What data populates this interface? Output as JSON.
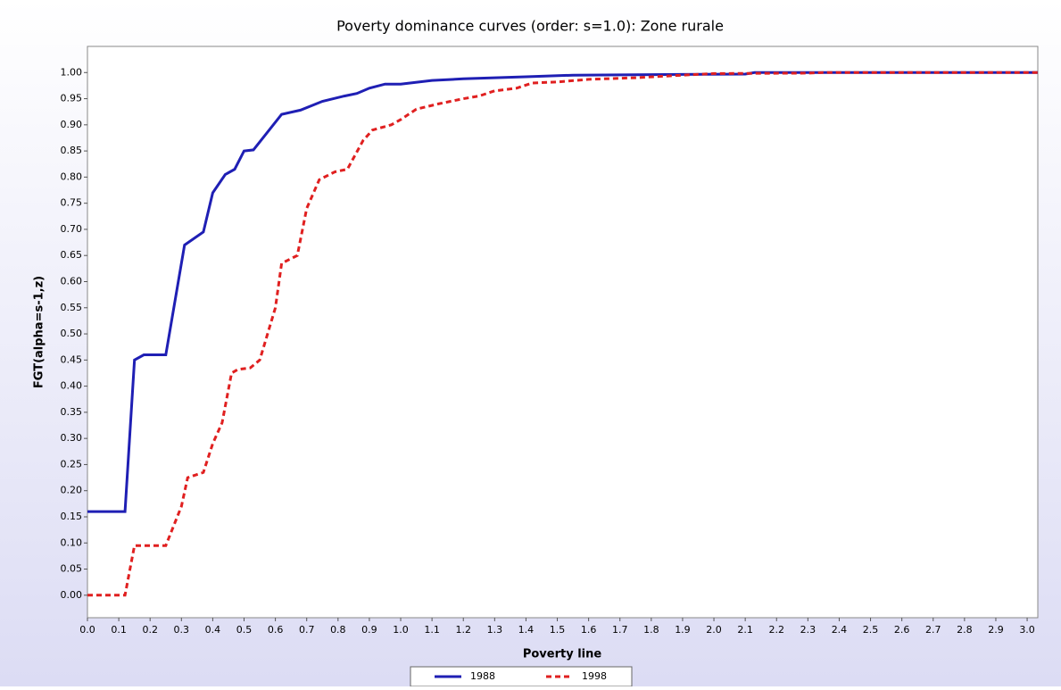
{
  "chart_data": {
    "type": "line",
    "title": "Poverty dominance curves (order: s=1.0): Zone rurale",
    "xlabel": "Poverty line",
    "ylabel": "FGT(alpha=s-1,z)",
    "xlim": [
      0,
      3.034
    ],
    "ylim": [
      -0.043,
      1.05
    ],
    "grid": false,
    "legend": "bottom",
    "xticks": [
      {
        "value": 0,
        "label": "0.0"
      },
      {
        "value": 0.1,
        "label": "0.1"
      },
      {
        "value": 0.2,
        "label": "0.2"
      },
      {
        "value": 0.3,
        "label": "0.3"
      },
      {
        "value": 0.4,
        "label": "0.4"
      },
      {
        "value": 0.5,
        "label": "0.5"
      },
      {
        "value": 0.6,
        "label": "0.6"
      },
      {
        "value": 0.7,
        "label": "0.7"
      },
      {
        "value": 0.8,
        "label": "0.8"
      },
      {
        "value": 0.9,
        "label": "0.9"
      },
      {
        "value": 1,
        "label": "1.0"
      },
      {
        "value": 1.1,
        "label": "1.1"
      },
      {
        "value": 1.2,
        "label": "1.2"
      },
      {
        "value": 1.3,
        "label": "1.3"
      },
      {
        "value": 1.4,
        "label": "1.4"
      },
      {
        "value": 1.5,
        "label": "1.5"
      },
      {
        "value": 1.6,
        "label": "1.6"
      },
      {
        "value": 1.7,
        "label": "1.7"
      },
      {
        "value": 1.8,
        "label": "1.8"
      },
      {
        "value": 1.9,
        "label": "1.9"
      },
      {
        "value": 2,
        "label": "2.0"
      },
      {
        "value": 2.1,
        "label": "2.1"
      },
      {
        "value": 2.2,
        "label": "2.2"
      },
      {
        "value": 2.3,
        "label": "2.3"
      },
      {
        "value": 2.4,
        "label": "2.4"
      },
      {
        "value": 2.5,
        "label": "2.5"
      },
      {
        "value": 2.6,
        "label": "2.6"
      },
      {
        "value": 2.7,
        "label": "2.7"
      },
      {
        "value": 2.8,
        "label": "2.8"
      },
      {
        "value": 2.9,
        "label": "2.9"
      },
      {
        "value": 3,
        "label": "3.0"
      }
    ],
    "yticks": [
      {
        "value": 0,
        "label": "0.00"
      },
      {
        "value": 0.05,
        "label": "0.05"
      },
      {
        "value": 0.1,
        "label": "0.10"
      },
      {
        "value": 0.15,
        "label": "0.15"
      },
      {
        "value": 0.2,
        "label": "0.20"
      },
      {
        "value": 0.25,
        "label": "0.25"
      },
      {
        "value": 0.3,
        "label": "0.30"
      },
      {
        "value": 0.35,
        "label": "0.35"
      },
      {
        "value": 0.4,
        "label": "0.40"
      },
      {
        "value": 0.45,
        "label": "0.45"
      },
      {
        "value": 0.5,
        "label": "0.50"
      },
      {
        "value": 0.55,
        "label": "0.55"
      },
      {
        "value": 0.6,
        "label": "0.60"
      },
      {
        "value": 0.65,
        "label": "0.65"
      },
      {
        "value": 0.7,
        "label": "0.70"
      },
      {
        "value": 0.75,
        "label": "0.75"
      },
      {
        "value": 0.8,
        "label": "0.80"
      },
      {
        "value": 0.85,
        "label": "0.85"
      },
      {
        "value": 0.9,
        "label": "0.90"
      },
      {
        "value": 0.95,
        "label": "0.95"
      },
      {
        "value": 1,
        "label": "1.00"
      }
    ],
    "series": [
      {
        "name": "1988",
        "color": "#1f1fb4",
        "dash": false,
        "x": [
          0,
          0.12,
          0.15,
          0.18,
          0.25,
          0.31,
          0.37,
          0.4,
          0.44,
          0.47,
          0.5,
          0.53,
          0.62,
          0.68,
          0.75,
          0.82,
          0.86,
          0.9,
          0.95,
          1.0,
          1.1,
          1.2,
          1.3,
          1.4,
          1.55,
          1.8,
          2.1,
          2.13,
          3.034
        ],
        "values": [
          0.16,
          0.16,
          0.45,
          0.46,
          0.46,
          0.67,
          0.695,
          0.77,
          0.805,
          0.815,
          0.85,
          0.852,
          0.92,
          0.928,
          0.945,
          0.955,
          0.96,
          0.97,
          0.978,
          0.978,
          0.985,
          0.988,
          0.99,
          0.992,
          0.995,
          0.996,
          0.997,
          1.0,
          1.0
        ]
      },
      {
        "name": "1998",
        "color": "#e02020",
        "dash": true,
        "x": [
          0,
          0.12,
          0.15,
          0.25,
          0.3,
          0.32,
          0.37,
          0.4,
          0.43,
          0.46,
          0.48,
          0.52,
          0.55,
          0.6,
          0.62,
          0.67,
          0.7,
          0.74,
          0.79,
          0.83,
          0.88,
          0.91,
          0.97,
          1.0,
          1.05,
          1.12,
          1.2,
          1.25,
          1.3,
          1.37,
          1.42,
          1.5,
          1.6,
          1.75,
          1.9,
          2.0,
          2.3,
          2.35,
          3.034
        ],
        "values": [
          0,
          0,
          0.095,
          0.095,
          0.17,
          0.225,
          0.235,
          0.29,
          0.33,
          0.425,
          0.432,
          0.435,
          0.45,
          0.55,
          0.635,
          0.65,
          0.74,
          0.795,
          0.81,
          0.815,
          0.87,
          0.89,
          0.9,
          0.91,
          0.93,
          0.94,
          0.95,
          0.955,
          0.965,
          0.97,
          0.98,
          0.982,
          0.987,
          0.99,
          0.995,
          0.998,
          0.999,
          1.0,
          1.0
        ]
      }
    ]
  }
}
